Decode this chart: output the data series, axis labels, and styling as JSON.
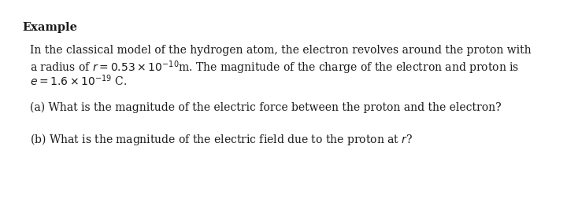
{
  "background_color": "#ffffff",
  "title": "Example",
  "title_fontsize": 10.5,
  "body_fontsize": 10.0,
  "text_color": "#1a1a1a",
  "line1": "In the classical model of the hydrogen atom, the electron revolves around the proton with",
  "line2a": "a radius of ",
  "line2b": " = 0.53",
  "line2c": "m. The magnitude of the charge of the electron and proton is",
  "line3a": " = 1.6",
  "line3b": "C.",
  "line_a": "(a) What is the magnitude of the electric force between the proton and the electron?",
  "line_b": "(b) What is the magnitude of the electric field due to the proton at "
}
